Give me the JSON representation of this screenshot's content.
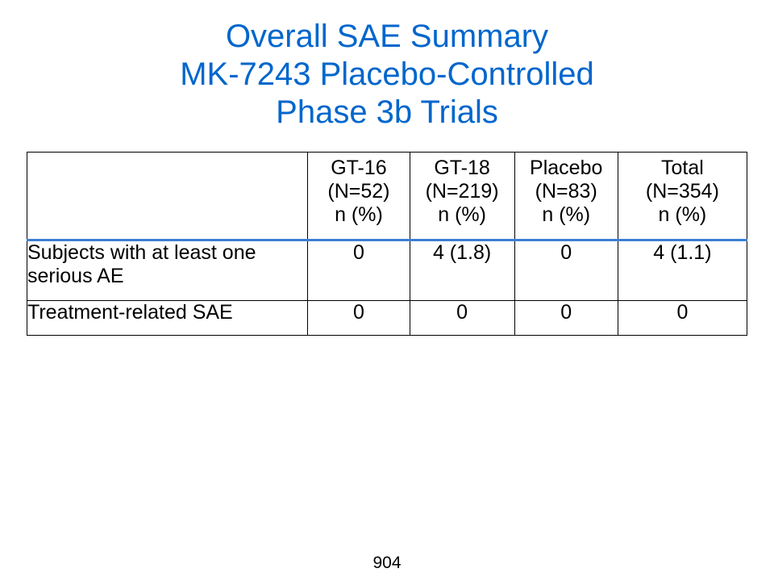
{
  "title": {
    "line1": "Overall SAE Summary",
    "line2": "MK-7243 Placebo-Controlled",
    "line3": "Phase 3b Trials"
  },
  "table": {
    "columns": [
      {
        "name": "GT-16",
        "n": "(N=52)",
        "unit": "n (%)"
      },
      {
        "name": "GT-18",
        "n": "(N=219)",
        "unit": "n (%)"
      },
      {
        "name": "Placebo",
        "n": "(N=83)",
        "unit": "n (%)"
      },
      {
        "name": "Total",
        "n": "(N=354)",
        "unit": "n (%)"
      }
    ],
    "rows": [
      {
        "label": "Subjects with at least one serious AE",
        "values": [
          "0",
          "4 (1.8)",
          "0",
          "4 (1.1)"
        ]
      },
      {
        "label": "Treatment-related SAE",
        "values": [
          "0",
          "0",
          "0",
          "0"
        ]
      }
    ]
  },
  "page_number": "904",
  "colors": {
    "title": "#0066cc",
    "header_rule": "#3b7fd4"
  }
}
